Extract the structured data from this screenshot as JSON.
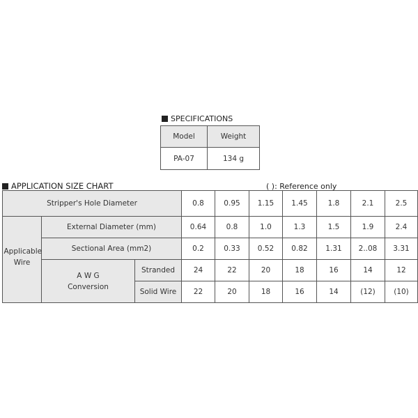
{
  "specifications": {
    "title": "SPECIFICATIONS",
    "headers": [
      "Model",
      "Weight"
    ],
    "row": [
      "PA-07",
      "134 g"
    ]
  },
  "chart": {
    "title": "APPLICATION SIZE CHART",
    "note": "(  ): Reference only",
    "hole_label": "Stripper's Hole Diameter",
    "hole_values": [
      "0.8",
      "0.95",
      "1.15",
      "1.45",
      "1.8",
      "2.1",
      "2.5"
    ],
    "group_label": "Applicable Wire",
    "ext_label": "External Diameter (mm)",
    "ext_values": [
      "0.64",
      "0.8",
      "1.0",
      "1.3",
      "1.5",
      "1.9",
      "2.4"
    ],
    "area_label": "Sectional Area (mm2)",
    "area_values": [
      "0.2",
      "0.33",
      "0.52",
      "0.82",
      "1.31",
      "2..08",
      "3.31"
    ],
    "awg_label_1": "A W G",
    "awg_label_2": "Conversion",
    "stranded_label": "Stranded",
    "stranded_values": [
      "24",
      "22",
      "20",
      "18",
      "16",
      "14",
      "12"
    ],
    "solid_label": "Solid Wire",
    "solid_values": [
      "22",
      "20",
      "18",
      "16",
      "14",
      "(12)",
      "(10)"
    ]
  }
}
